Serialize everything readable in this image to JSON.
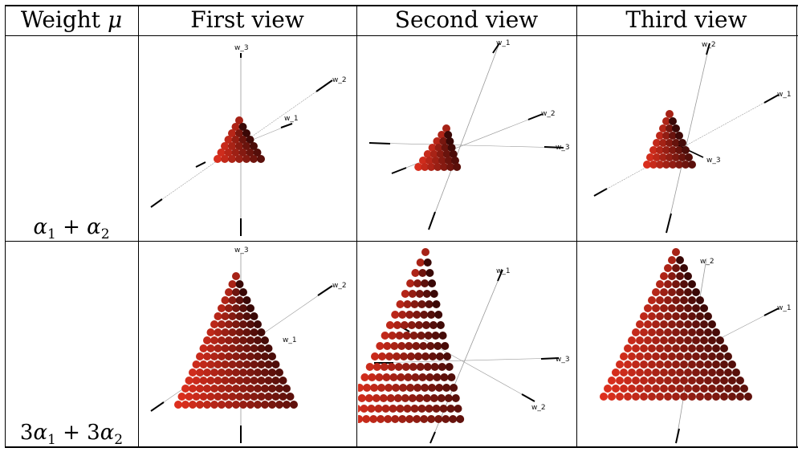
{
  "header": {
    "col_weight_prefix": "Weight ",
    "col_weight_symbol": "μ",
    "col_first": "First view",
    "col_second": "Second view",
    "col_third": "Third view"
  },
  "rows": [
    {
      "weight": {
        "c1": "",
        "a1": "α",
        "s1": "1",
        "plus": " + ",
        "c2": "",
        "a2": "α",
        "s2": "2"
      },
      "first": {
        "a": "w_3",
        "b": "w_2",
        "c": "w_1"
      },
      "second": {
        "a": "w_1",
        "b": "w_2",
        "c": "w_3"
      },
      "third": {
        "a": "w_2",
        "b": "w_1",
        "c": "w_3"
      }
    },
    {
      "weight": {
        "c1": "3",
        "a1": "α",
        "s1": "1",
        "plus": " + ",
        "c2": "3",
        "a2": "α",
        "s2": "2"
      },
      "first": {
        "a": "w_3",
        "b": "w_2",
        "c": "w_1"
      },
      "second": {
        "a": "w_1",
        "b": "w_3",
        "c": "w_2"
      },
      "third": {
        "a": "w_2",
        "b": "w_1"
      }
    }
  ],
  "colors": {
    "sphere_light": "#e0301e",
    "sphere_dark": "#3a0806",
    "axis": "#444444"
  }
}
